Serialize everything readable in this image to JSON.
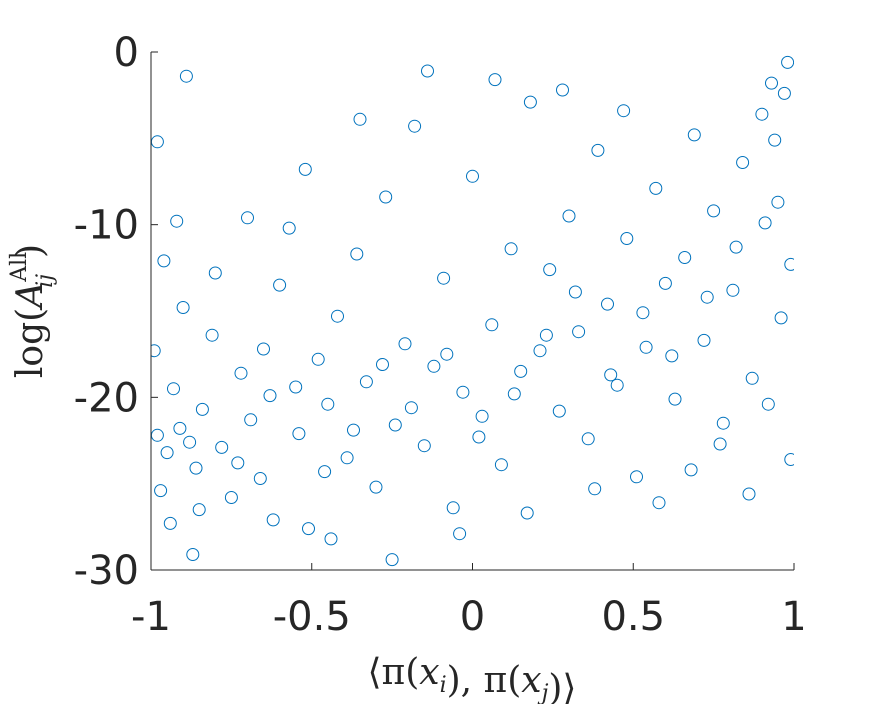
{
  "chart_data": {
    "type": "scatter",
    "title": "",
    "xlabel": "⟨π(x_i), π(x_j)⟩",
    "ylabel": "log(A_ij^All)",
    "xlim": [
      -1,
      1
    ],
    "ylim": [
      -30,
      0
    ],
    "x_ticks": [
      -1,
      -0.5,
      0,
      0.5,
      1
    ],
    "x_tick_labels": [
      "-1",
      "-0.5",
      "0",
      "0.5",
      "1"
    ],
    "y_ticks": [
      0,
      -10,
      -20,
      -30
    ],
    "y_tick_labels": [
      "0",
      "-10",
      "-20",
      "-30"
    ],
    "grid": false,
    "marker": "open-circle",
    "series": [
      {
        "color": "#0072BD",
        "points": [
          [
            -0.95,
            -23.2
          ],
          [
            -0.91,
            -21.8
          ],
          [
            -0.97,
            -25.4
          ],
          [
            -0.88,
            -22.6
          ],
          [
            -0.93,
            -19.5
          ],
          [
            -0.86,
            -24.1
          ],
          [
            -0.99,
            -17.3
          ],
          [
            -0.9,
            -14.8
          ],
          [
            -0.96,
            -12.1
          ],
          [
            -0.92,
            -9.8
          ],
          [
            -0.98,
            -5.2
          ],
          [
            -0.89,
            -1.4
          ],
          [
            -0.94,
            -27.3
          ],
          [
            -0.87,
            -29.1
          ],
          [
            -0.84,
            -20.7
          ],
          [
            -0.81,
            -16.4
          ],
          [
            -0.78,
            -22.9
          ],
          [
            -0.75,
            -25.8
          ],
          [
            -0.72,
            -18.6
          ],
          [
            -0.69,
            -21.3
          ],
          [
            -0.66,
            -24.7
          ],
          [
            -0.63,
            -19.9
          ],
          [
            -0.6,
            -13.5
          ],
          [
            -0.57,
            -10.2
          ],
          [
            -0.54,
            -22.1
          ],
          [
            -0.51,
            -27.6
          ],
          [
            -0.48,
            -17.8
          ],
          [
            -0.45,
            -20.4
          ],
          [
            -0.42,
            -15.3
          ],
          [
            -0.39,
            -23.5
          ],
          [
            -0.36,
            -11.7
          ],
          [
            -0.33,
            -19.1
          ],
          [
            -0.3,
            -25.2
          ],
          [
            -0.27,
            -8.4
          ],
          [
            -0.24,
            -21.6
          ],
          [
            -0.21,
            -16.9
          ],
          [
            -0.18,
            -4.3
          ],
          [
            -0.15,
            -22.8
          ],
          [
            -0.12,
            -18.2
          ],
          [
            -0.09,
            -13.1
          ],
          [
            -0.06,
            -26.4
          ],
          [
            -0.03,
            -19.7
          ],
          [
            0.0,
            -7.2
          ],
          [
            0.03,
            -21.1
          ],
          [
            0.06,
            -15.8
          ],
          [
            0.09,
            -23.9
          ],
          [
            0.12,
            -11.4
          ],
          [
            0.15,
            -18.5
          ],
          [
            0.18,
            -2.9
          ],
          [
            0.21,
            -17.3
          ],
          [
            0.24,
            -12.6
          ],
          [
            0.27,
            -20.8
          ],
          [
            0.3,
            -9.5
          ],
          [
            0.33,
            -16.2
          ],
          [
            0.36,
            -22.4
          ],
          [
            0.39,
            -5.7
          ],
          [
            0.42,
            -14.6
          ],
          [
            0.45,
            -19.3
          ],
          [
            0.48,
            -10.8
          ],
          [
            0.51,
            -24.6
          ],
          [
            0.54,
            -17.1
          ],
          [
            0.57,
            -7.9
          ],
          [
            0.6,
            -13.4
          ],
          [
            0.63,
            -20.1
          ],
          [
            0.66,
            -11.9
          ],
          [
            0.69,
            -4.8
          ],
          [
            0.72,
            -16.7
          ],
          [
            0.75,
            -9.2
          ],
          [
            0.78,
            -21.5
          ],
          [
            0.81,
            -13.8
          ],
          [
            0.84,
            -6.4
          ],
          [
            0.87,
            -18.9
          ],
          [
            0.9,
            -3.6
          ],
          [
            0.93,
            -1.8
          ],
          [
            0.95,
            -8.7
          ],
          [
            0.97,
            -2.4
          ],
          [
            0.98,
            -0.6
          ],
          [
            0.99,
            -12.3
          ],
          [
            0.96,
            -15.4
          ],
          [
            0.94,
            -5.1
          ],
          [
            -0.8,
            -12.8
          ],
          [
            -0.7,
            -9.6
          ],
          [
            -0.62,
            -27.1
          ],
          [
            -0.52,
            -6.8
          ],
          [
            -0.44,
            -28.2
          ],
          [
            -0.35,
            -3.9
          ],
          [
            -0.25,
            -29.4
          ],
          [
            -0.14,
            -1.1
          ],
          [
            -0.04,
            -27.9
          ],
          [
            0.07,
            -1.6
          ],
          [
            0.17,
            -26.7
          ],
          [
            0.28,
            -2.2
          ],
          [
            0.38,
            -25.3
          ],
          [
            0.47,
            -3.4
          ],
          [
            0.58,
            -26.1
          ],
          [
            0.68,
            -24.2
          ],
          [
            0.77,
            -22.7
          ],
          [
            0.86,
            -25.6
          ],
          [
            0.92,
            -20.4
          ],
          [
            0.99,
            -23.6
          ],
          [
            -0.98,
            -22.2
          ],
          [
            -0.85,
            -26.5
          ],
          [
            -0.73,
            -23.8
          ],
          [
            -0.65,
            -17.2
          ],
          [
            -0.55,
            -19.4
          ],
          [
            -0.46,
            -24.3
          ],
          [
            -0.37,
            -21.9
          ],
          [
            -0.28,
            -18.1
          ],
          [
            -0.19,
            -20.6
          ],
          [
            -0.08,
            -17.5
          ],
          [
            0.02,
            -22.3
          ],
          [
            0.13,
            -19.8
          ],
          [
            0.23,
            -16.4
          ],
          [
            0.32,
            -13.9
          ],
          [
            0.43,
            -18.7
          ],
          [
            0.53,
            -15.1
          ],
          [
            0.62,
            -17.6
          ],
          [
            0.73,
            -14.2
          ],
          [
            0.82,
            -11.3
          ],
          [
            0.91,
            -9.9
          ]
        ]
      }
    ]
  }
}
